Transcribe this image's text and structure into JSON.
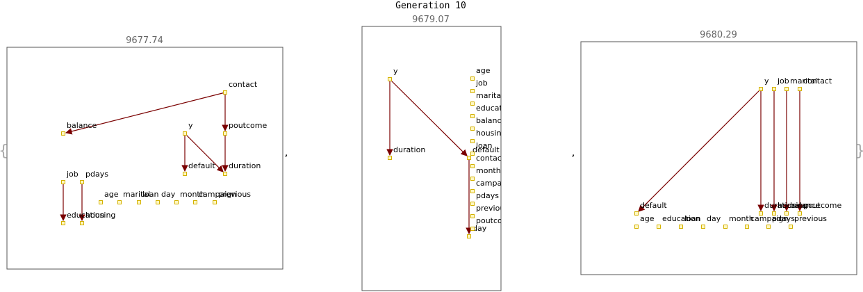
{
  "title": "Generation 10",
  "brace_open": "{",
  "brace_close": "}",
  "separator": ",",
  "colors": {
    "edge": "#7a0000",
    "node_fill": "#fff7c0",
    "node_stroke": "#d4b100",
    "frame": "#555555",
    "score_text": "#666666"
  },
  "panels": [
    {
      "score": "9677.74",
      "nodes": [
        "contact",
        "balance",
        "y",
        "poutcome",
        "default",
        "duration",
        "job",
        "pdays",
        "education",
        "housing",
        "age",
        "marital",
        "loan",
        "day",
        "month",
        "campaign",
        "previous"
      ],
      "edges": [
        [
          "contact",
          "balance"
        ],
        [
          "contact",
          "poutcome"
        ],
        [
          "poutcome",
          "duration"
        ],
        [
          "y",
          "default"
        ],
        [
          "y",
          "duration"
        ],
        [
          "job",
          "education"
        ],
        [
          "pdays",
          "housing"
        ]
      ]
    },
    {
      "score": "9679.07",
      "nodes": [
        "y",
        "duration",
        "default",
        "day",
        "age",
        "job",
        "marital",
        "education",
        "balance",
        "housing",
        "loan",
        "contact",
        "month",
        "campaign",
        "pdays",
        "previous",
        "poutcome"
      ],
      "edges": [
        [
          "y",
          "duration"
        ],
        [
          "y",
          "default"
        ],
        [
          "default",
          "day"
        ]
      ]
    },
    {
      "score": "9680.29",
      "nodes": [
        "y",
        "job",
        "marital",
        "contact",
        "default",
        "duration",
        "housing",
        "balance",
        "poutcome",
        "age",
        "education",
        "loan",
        "day",
        "month",
        "campaign",
        "pdays",
        "previous"
      ],
      "edges": [
        [
          "y",
          "default"
        ],
        [
          "y",
          "duration"
        ],
        [
          "job",
          "housing"
        ],
        [
          "marital",
          "balance"
        ],
        [
          "contact",
          "poutcome"
        ]
      ]
    }
  ]
}
